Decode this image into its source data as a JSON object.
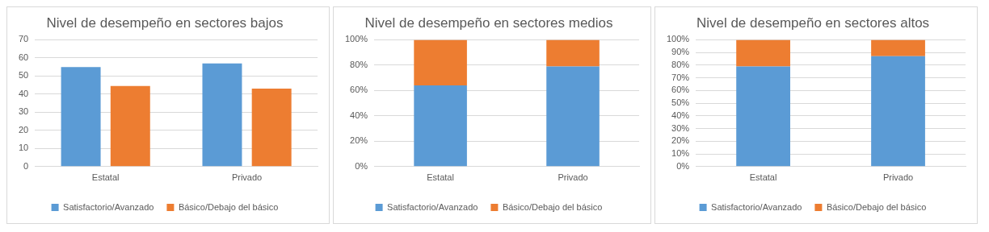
{
  "chart_data": [
    {
      "type": "bar",
      "title": "Nivel de desempeño en sectores bajos",
      "categories": [
        "Estatal",
        "Privado"
      ],
      "series": [
        {
          "name": "Satisfactorio/Avanzado",
          "color": "#5b9bd5",
          "values": [
            55,
            57
          ]
        },
        {
          "name": "Básico/Debajo del básico",
          "color": "#ed7d31",
          "values": [
            44.5,
            43
          ]
        }
      ],
      "ylim": [
        0,
        70
      ],
      "yticks": [
        0,
        10,
        20,
        30,
        40,
        50,
        60,
        70
      ],
      "grid": "y",
      "legend": "bottom"
    },
    {
      "type": "bar",
      "title": "Nivel de desempeño en sectores medios",
      "categories": [
        "Estatal",
        "Privado"
      ],
      "stacked": true,
      "series": [
        {
          "name": "Satisfactorio/Avanzado",
          "color": "#5b9bd5",
          "values": [
            64,
            79
          ]
        },
        {
          "name": "Básico/Debajo del básico",
          "color": "#ed7d31",
          "values": [
            36,
            21
          ]
        }
      ],
      "ylim": [
        0,
        100
      ],
      "yticks": [
        {
          "value": 0,
          "label": "0%"
        },
        {
          "value": 20,
          "label": "20%"
        },
        {
          "value": 40,
          "label": "40%"
        },
        {
          "value": 60,
          "label": "60%"
        },
        {
          "value": 80,
          "label": "80%"
        },
        {
          "value": 100,
          "label": "100%"
        }
      ],
      "grid": "y",
      "legend": "bottom"
    },
    {
      "type": "bar",
      "title": "Nivel de desempeño en sectores altos",
      "categories": [
        "Estatal",
        "Privado"
      ],
      "stacked": true,
      "series": [
        {
          "name": "Satisfactorio/Avanzado",
          "color": "#5b9bd5",
          "values": [
            79,
            87
          ]
        },
        {
          "name": "Básico/Debajo del básico",
          "color": "#ed7d31",
          "values": [
            21,
            13
          ]
        }
      ],
      "ylim": [
        0,
        100
      ],
      "yticks": [
        {
          "value": 0,
          "label": "0%"
        },
        {
          "value": 10,
          "label": "10%"
        },
        {
          "value": 20,
          "label": "20%"
        },
        {
          "value": 30,
          "label": "30%"
        },
        {
          "value": 40,
          "label": "40%"
        },
        {
          "value": 50,
          "label": "50%"
        },
        {
          "value": 60,
          "label": "60%"
        },
        {
          "value": 70,
          "label": "70%"
        },
        {
          "value": 80,
          "label": "80%"
        },
        {
          "value": 90,
          "label": "90%"
        },
        {
          "value": 100,
          "label": "100%"
        }
      ],
      "grid": "y",
      "legend": "bottom"
    }
  ]
}
